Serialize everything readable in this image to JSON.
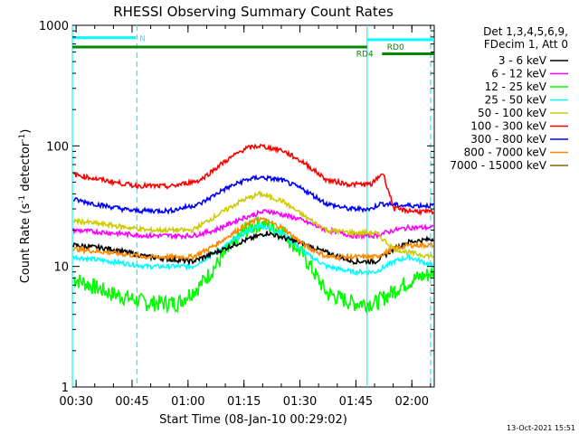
{
  "chart_data": {
    "type": "line",
    "title": "RHESSI Observing Summary Count Rates",
    "xlabel": "Start Time (08-Jan-10 00:29:02)",
    "ylabel_main": "Count Rate (s",
    "ylabel_sup": "-1",
    "ylabel_mid": " detector",
    "ylabel_end": ")",
    "x_scale": "time (minutes from 00:29:02)",
    "xlim": [
      0,
      97
    ],
    "y_scale": "log",
    "ylim": [
      1,
      1000
    ],
    "xticks": [
      "00:30",
      "00:45",
      "01:00",
      "01:15",
      "01:30",
      "01:45",
      "02:00"
    ],
    "yticks": [
      "1",
      "10",
      "100",
      "1000"
    ],
    "legend_header": [
      "Det 1,3,4,5,6,9,",
      "FDecim 1, Att 0"
    ],
    "legend_position": "right",
    "series": [
      {
        "name": "3 - 6 keV",
        "color": "#000000",
        "x": [
          0,
          10,
          20,
          32,
          38,
          45,
          52,
          60,
          68,
          75,
          81,
          86,
          90,
          97
        ],
        "values": [
          15,
          14,
          12,
          11,
          13,
          16,
          19,
          16,
          13,
          11,
          11,
          14,
          16,
          17
        ]
      },
      {
        "name": "6 - 12 keV",
        "color": "#ff00ff",
        "x": [
          0,
          10,
          20,
          32,
          38,
          45,
          52,
          60,
          68,
          75,
          81,
          86,
          90,
          97
        ],
        "values": [
          20,
          19,
          18,
          18,
          20,
          25,
          29,
          25,
          20,
          18,
          18,
          20,
          21,
          21
        ]
      },
      {
        "name": "12 - 25 keV",
        "color": "#00ff00",
        "x": [
          0,
          10,
          20,
          28,
          34,
          40,
          46,
          50,
          56,
          62,
          68,
          75,
          81,
          85,
          88,
          92,
          97
        ],
        "values": [
          8,
          6,
          5,
          5,
          7,
          12,
          20,
          23,
          20,
          12,
          6,
          5,
          5,
          6,
          7,
          8,
          9
        ]
      },
      {
        "name": "25 - 50 keV",
        "color": "#00ffff",
        "x": [
          0,
          10,
          20,
          32,
          38,
          46,
          50,
          56,
          62,
          68,
          75,
          81,
          86,
          90,
          97
        ],
        "values": [
          12,
          11,
          10,
          10,
          13,
          19,
          22,
          19,
          13,
          10,
          9,
          9,
          11,
          12,
          10
        ]
      },
      {
        "name": "50 - 100 keV",
        "color": "#cccc00",
        "x": [
          0,
          10,
          20,
          32,
          38,
          45,
          50,
          56,
          62,
          68,
          75,
          81,
          86,
          90,
          97
        ],
        "values": [
          24,
          22,
          20,
          20,
          26,
          35,
          40,
          35,
          26,
          20,
          19,
          19,
          14,
          13,
          12
        ]
      },
      {
        "name": "100 - 300 keV",
        "color": "#ff0000",
        "x": [
          0,
          8,
          16,
          26,
          34,
          40,
          46,
          50,
          56,
          62,
          68,
          74,
          80,
          82,
          83,
          86,
          90,
          97
        ],
        "values": [
          58,
          52,
          47,
          46,
          52,
          72,
          95,
          100,
          92,
          72,
          52,
          48,
          48,
          56,
          60,
          30,
          29,
          28
        ]
      },
      {
        "name": "300 - 800 keV",
        "color": "#0000ff",
        "x": [
          0,
          8,
          16,
          26,
          34,
          40,
          46,
          50,
          56,
          62,
          68,
          74,
          80,
          82,
          84,
          88,
          97
        ],
        "values": [
          36,
          32,
          29,
          29,
          33,
          43,
          52,
          55,
          52,
          43,
          33,
          30,
          30,
          33,
          33,
          32,
          32
        ]
      },
      {
        "name": "800 - 7000 keV",
        "color": "#ff8800",
        "x": [
          0,
          10,
          20,
          32,
          38,
          45,
          50,
          56,
          62,
          68,
          75,
          81,
          86,
          90,
          97
        ],
        "values": [
          14,
          13,
          12,
          12,
          15,
          21,
          25,
          21,
          15,
          12,
          12,
          12,
          14,
          15,
          15
        ]
      },
      {
        "name": "7000 - 15000 keV",
        "color": "#886600",
        "x": [],
        "values": []
      }
    ],
    "flags": [
      {
        "name": "N",
        "color": "#00ffff",
        "x": [
          0,
          17
        ],
        "level": 790
      },
      {
        "name": "RD0",
        "color": "#00ffff",
        "x": [
          79,
          97
        ],
        "level": 760
      },
      {
        "name": "RD4",
        "color": "#008800",
        "x": [
          0,
          79
        ],
        "level": 660
      },
      {
        "name": "RD4",
        "color": "#008800",
        "x": [
          83,
          97
        ],
        "level": 580
      }
    ],
    "vertical_markers": [
      {
        "x": 0,
        "style": "solid",
        "color": "#00ffff"
      },
      {
        "x": 17.3,
        "style": "dashed",
        "color": "#00ffff"
      },
      {
        "x": 79.0,
        "style": "solid",
        "color": "#00ffff"
      },
      {
        "x": 96.0,
        "style": "dashed",
        "color": "#00ffff"
      }
    ],
    "footer_date": "13-Oct-2021 15:51"
  }
}
